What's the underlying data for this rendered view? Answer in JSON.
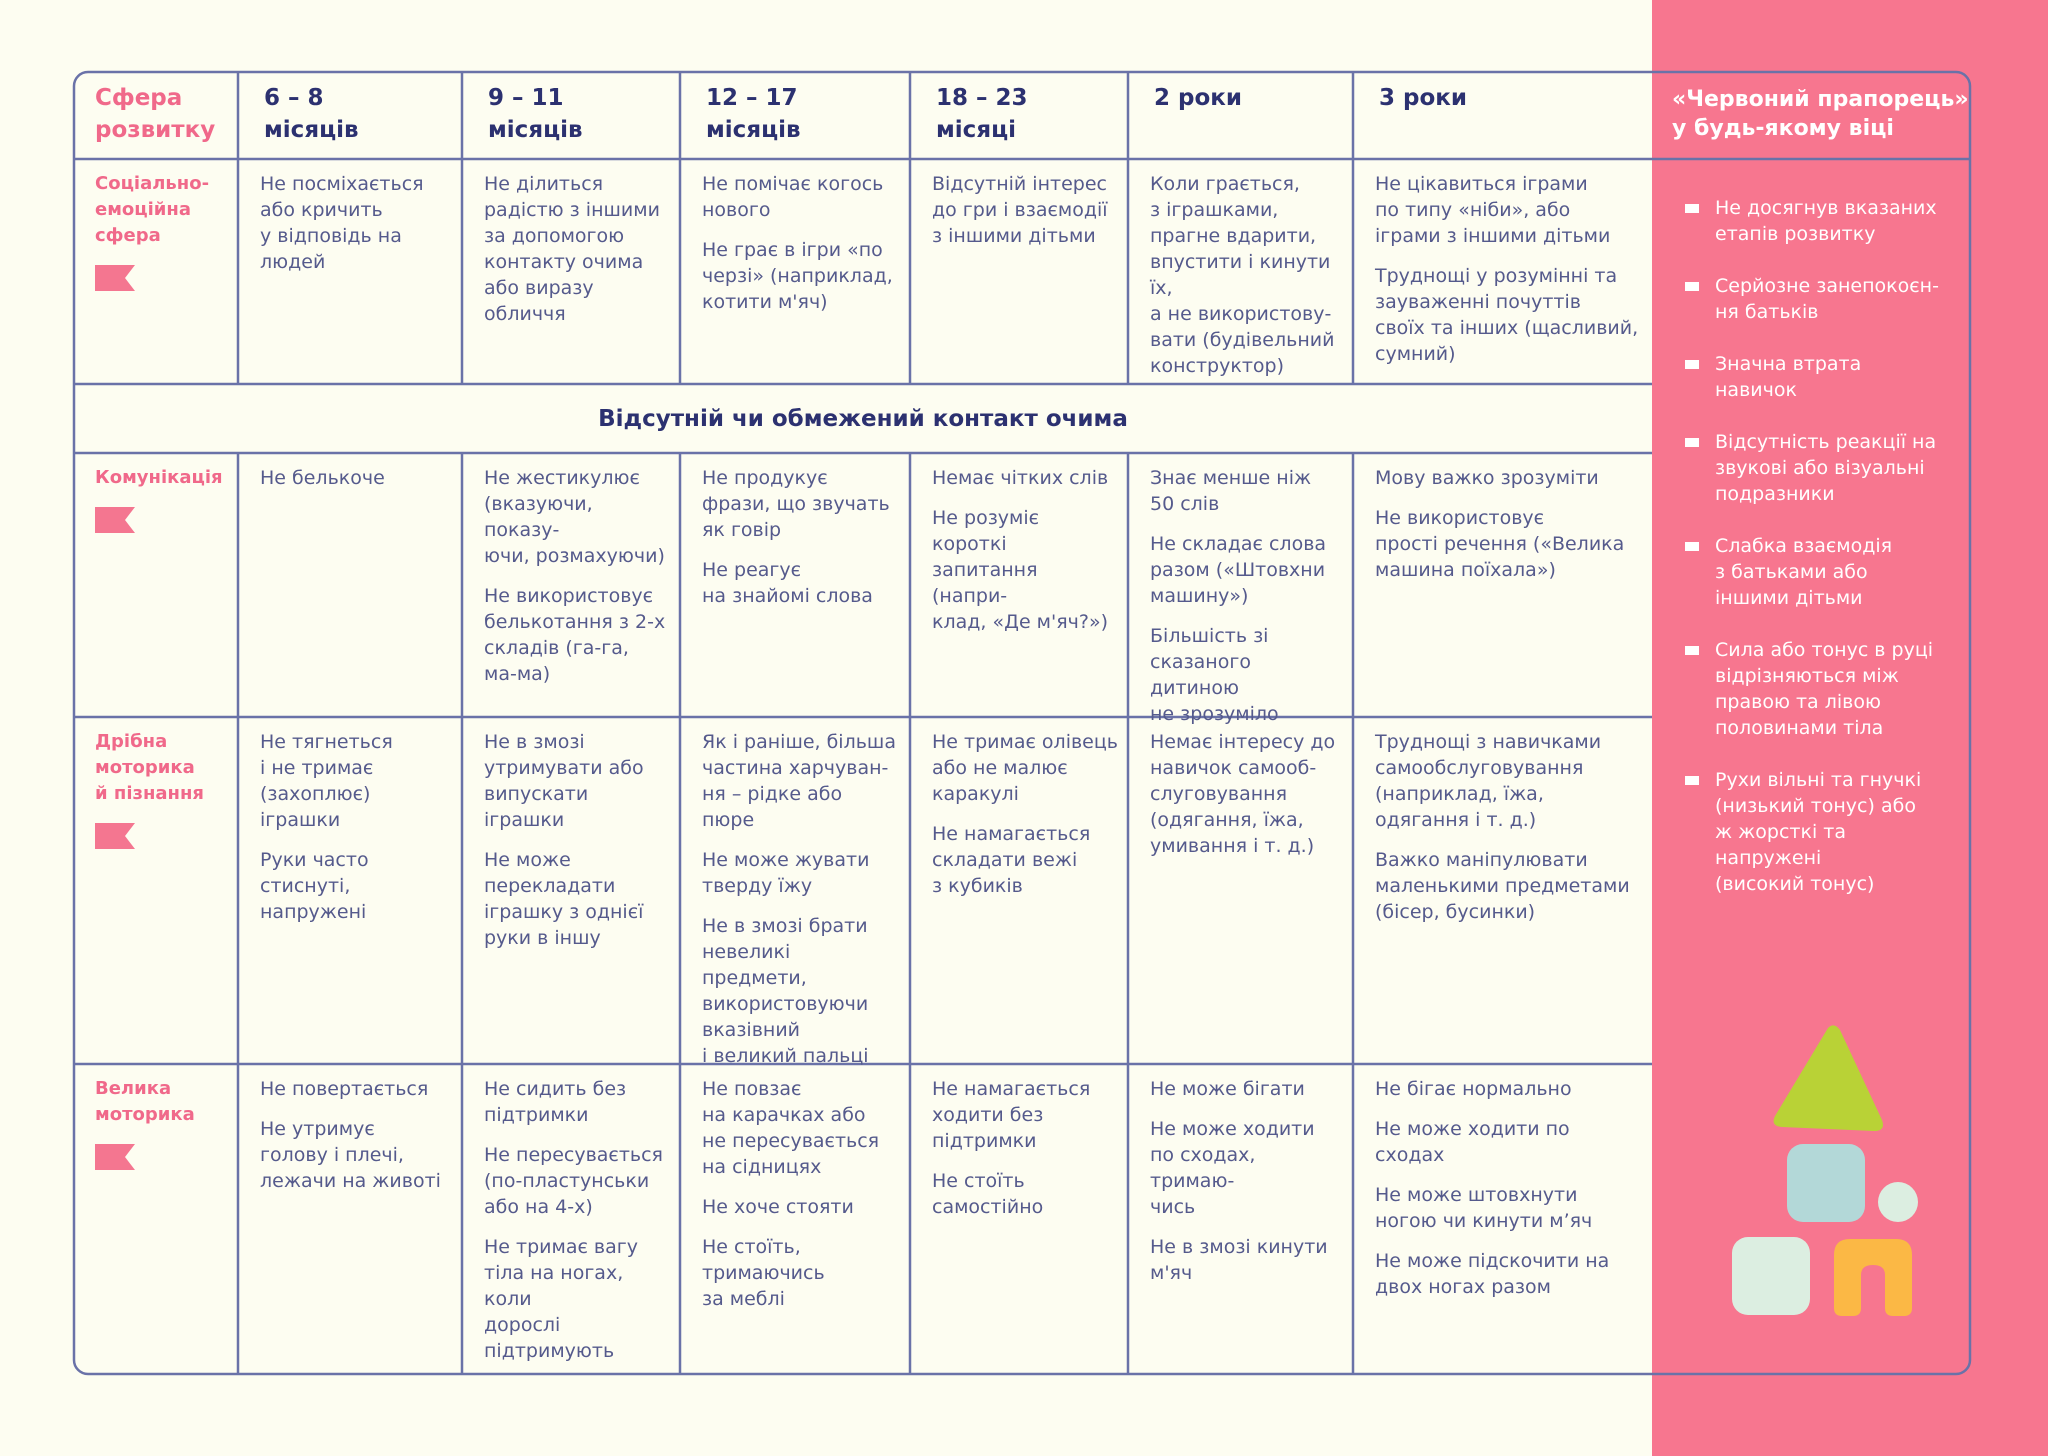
{
  "header": {
    "title": "Сфера\nрозвитку",
    "columns": [
      "6 – 8\nмісяців",
      "9 – 11\nмісяців",
      "12 – 17\nмісяців",
      "18 – 23\nмісяці",
      "2 роки",
      "3 роки"
    ]
  },
  "banner": "Відсутній чи обмежений контакт очима",
  "rows": [
    {
      "label": "Соціально-\nемоційна\nсфера",
      "cells": [
        [
          "Не посміхається\nабо кричить\nу відповідь на\nлюдей"
        ],
        [
          "Не ділиться\nрадістю з іншими\nза допомогою\nконтакту очима\nабо виразу\nобличчя"
        ],
        [
          "Не помічає когось\nнового",
          "Не грає в ігри «по\nчерзі» (наприклад,\nкотити м'яч)"
        ],
        [
          "Відсутній інтерес\nдо гри і взаємодії\nз іншими дітьми"
        ],
        [
          "Коли грається,\nз іграшками,\nпрагне вдарити,\nвпустити і кинути їх,\nа не використову-\nвати (будівельний\nконструктор)"
        ],
        [
          "Не цікавиться іграми\nпо типу «ніби», або\nіграми з іншими дітьми",
          "Труднощі у розумінні та\nзауваженні почуттів\nсвоїх та інших (щасливий,\nсумний)"
        ]
      ]
    },
    {
      "label": "Комунікація",
      "cells": [
        [
          "Не белькоче"
        ],
        [
          "Не жестикулює\n(вказуючи, показу-\nючи, розмахуючи)",
          "Не використовує\nбелькотання з 2-х\nскладів (га-га,\nма-ма)"
        ],
        [
          "Не продукує\nфрази, що звучать\nяк говір",
          "Не реагує\nна знайомі слова"
        ],
        [
          "Немає чітких слів",
          "Не розуміє короткі\nзапитання (напри-\nклад, «Де м'яч?»)"
        ],
        [
          "Знає менше ніж\n50 слів",
          "Не складає слова\nразом («Штовхни\nмашину»)",
          "Більшість зі\nсказаного дитиною\nне зрозуміло"
        ],
        [
          "Мову важко зрозуміти",
          "Не використовує\nпрості речення («Велика\nмашина поїхала»)"
        ]
      ]
    },
    {
      "label": "Дрібна\nмоторика\nй пізнання",
      "cells": [
        [
          "Не тягнеться\nі не тримає\n(захоплює) іграшки",
          "Руки часто\nстиснуті, напружені"
        ],
        [
          "Не в змозі\nутримувати або\nвипускати іграшки",
          "Не може\nперекладати\nіграшку з однієї\nруки в іншу"
        ],
        [
          "Як і раніше, більша\nчастина харчуван-\nня – рідке або\nпюре",
          "Не може жувати\nтверду їжу",
          "Не в змозі брати\nневеликі предмети,\nвикористовуючи\nвказівний\nі великий пальці"
        ],
        [
          "Не тримає олівець\nабо не малює\nкаракулі",
          "Не намагається\nскладати вежі\nз кубиків"
        ],
        [
          "Немає інтересу до\nнавичок самооб-\nслуговування\n(одягання, їжа,\nумивання і т. д.)"
        ],
        [
          "Труднощі з навичками\nсамообслуговування\n(наприклад, їжа,\nодягання і т. д.)",
          "Важко маніпулювати\nмаленькими предметами\n(бісер, бусинки)"
        ]
      ]
    },
    {
      "label": "Велика\nмоторика",
      "cells": [
        [
          "Не повертається",
          "Не утримує\nголову і плечі,\nлежачи на животі"
        ],
        [
          "Не сидить без\nпідтримки",
          "Не пересувається\n(по-пластунськи\nабо на 4-х)",
          "Не тримає вагу\nтіла на ногах, коли\nдорослі\nпідтримують"
        ],
        [
          "Не повзає\nна карачках або\nне пересувається\nна сідницях",
          "Не хоче стояти",
          "Не стоїть,\nтримаючись\nза меблі"
        ],
        [
          "Не намагається\nходити без\nпідтримки",
          "Не стоїть\nсамостійно"
        ],
        [
          "Не може бігати",
          "Не може ходити\nпо сходах, тримаю-\nчись",
          "Не в змозі кинути\nм'яч"
        ],
        [
          "Не бігає нормально",
          "Не може ходити по\nсходах",
          "Не може штовхнути\nногою чи кинути м’яч",
          "Не може підскочити на\nдвох ногах разом"
        ]
      ]
    }
  ],
  "red_flag": {
    "title": "«Червоний прапорець»\nу будь-якому віці",
    "items": [
      "Не досягнув вказаних\nетапів розвитку",
      "Серйозне занепокоєн-\nня батьків",
      "Значна втрата\nнавичок",
      "Відсутність реакції на\nзвукові або візуальні\nподразники",
      "Слабка взаємодія\nз батьками або\nіншими дітьми",
      "Сила або тонус в руці\nвідрізняються між\nправою та лівою\nполовинами тіла",
      "Рухи вільні та гнучкі\n(низький тонус) або\nж жорсткі та\nнапружені\n(високий тонус)"
    ]
  }
}
